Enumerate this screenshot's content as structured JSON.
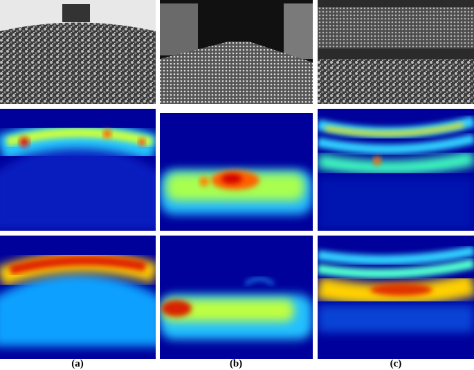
{
  "figure": {
    "columns": [
      {
        "label": "(a)"
      },
      {
        "label": "(b)"
      },
      {
        "label": "(c)"
      }
    ]
  }
}
